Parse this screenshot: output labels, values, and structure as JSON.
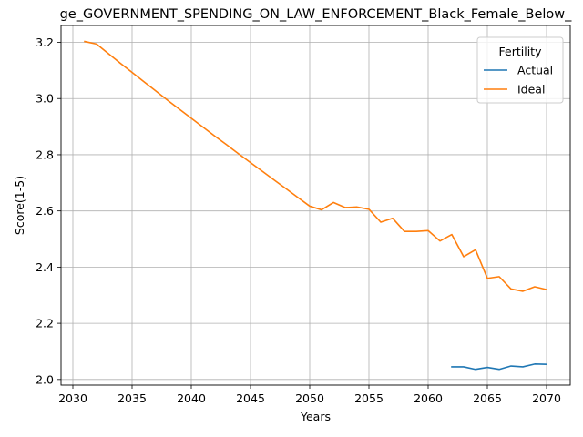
{
  "chart_data": {
    "type": "line",
    "title": "ge_GOVERNMENT_SPENDING_ON_LAW_ENFORCEMENT_Black_Female_Below_",
    "xlabel": "Years",
    "ylabel": "Score(1-5)",
    "xlim": [
      2029.0,
      2072.0
    ],
    "ylim": [
      1.98,
      3.26
    ],
    "xticks": [
      2030,
      2035,
      2040,
      2045,
      2050,
      2055,
      2060,
      2065,
      2070
    ],
    "yticks": [
      2.0,
      2.2,
      2.4,
      2.6,
      2.8,
      3.0,
      3.2
    ],
    "ytick_labels": [
      "2.0",
      "2.2",
      "2.4",
      "2.6",
      "2.8",
      "3.0",
      "3.2"
    ],
    "grid": true,
    "legend": {
      "title": "Fertility",
      "placement": "top-right"
    },
    "series": [
      {
        "name": "Actual",
        "color": "#1f77b4",
        "x": [
          2062,
          2063,
          2064,
          2065,
          2066,
          2067,
          2068,
          2069,
          2070
        ],
        "y": [
          2.045,
          2.045,
          2.036,
          2.043,
          2.036,
          2.048,
          2.045,
          2.055,
          2.054
        ]
      },
      {
        "name": "Ideal",
        "color": "#ff7f0e",
        "x": [
          2031,
          2032,
          2033,
          2034,
          2035,
          2036,
          2037,
          2038,
          2039,
          2040,
          2041,
          2042,
          2043,
          2044,
          2045,
          2046,
          2047,
          2048,
          2049,
          2050,
          2051,
          2052,
          2053,
          2054,
          2055,
          2056,
          2057,
          2058,
          2059,
          2060,
          2061,
          2062,
          2063,
          2064,
          2065,
          2066,
          2067,
          2068,
          2069,
          2070
        ],
        "y": [
          3.203,
          3.194,
          3.16,
          3.126,
          3.093,
          3.06,
          3.027,
          2.994,
          2.962,
          2.93,
          2.898,
          2.866,
          2.835,
          2.803,
          2.772,
          2.741,
          2.71,
          2.679,
          2.648,
          2.617,
          2.604,
          2.63,
          2.612,
          2.614,
          2.606,
          2.56,
          2.574,
          2.527,
          2.527,
          2.53,
          2.493,
          2.516,
          2.437,
          2.462,
          2.36,
          2.366,
          2.322,
          2.314,
          2.33,
          2.32
        ]
      }
    ]
  }
}
